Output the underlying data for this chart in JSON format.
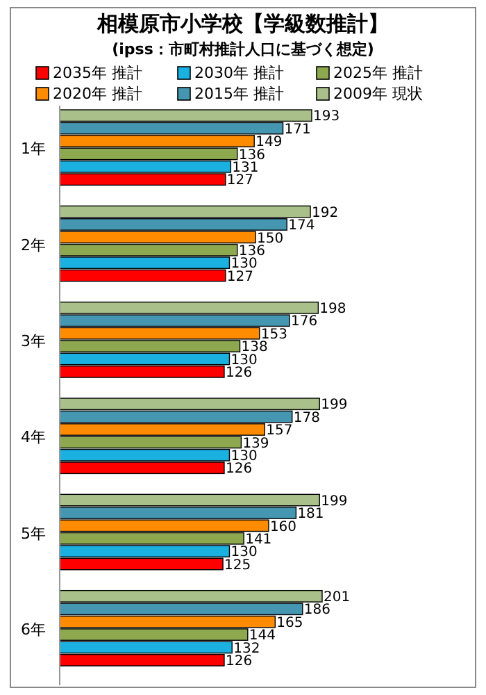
{
  "chart_data": {
    "type": "bar",
    "orientation": "horizontal",
    "title": "相模原市小学校【学級数推計】",
    "subtitle": "(ipss：市町村推計人口に基づく想定)",
    "categories": [
      "1年",
      "2年",
      "3年",
      "4年",
      "5年",
      "6年"
    ],
    "series": [
      {
        "name": "2035年 推計",
        "color": "#ff0000",
        "values": [
          127,
          127,
          126,
          126,
          125,
          126
        ]
      },
      {
        "name": "2030年 推計",
        "color": "#1ab0e0",
        "values": [
          131,
          130,
          130,
          130,
          130,
          132
        ]
      },
      {
        "name": "2025年 推計",
        "color": "#8da84f",
        "values": [
          136,
          136,
          138,
          139,
          141,
          144
        ]
      },
      {
        "name": "2020年 推計",
        "color": "#ff8c00",
        "values": [
          149,
          150,
          153,
          157,
          160,
          165
        ]
      },
      {
        "name": "2015年 推計",
        "color": "#4596b0",
        "values": [
          171,
          174,
          176,
          178,
          181,
          186
        ]
      },
      {
        "name": "2009年 現状",
        "color": "#a9c08a",
        "values": [
          193,
          192,
          198,
          199,
          199,
          201
        ]
      }
    ],
    "data_labels": true,
    "legend": "top"
  }
}
